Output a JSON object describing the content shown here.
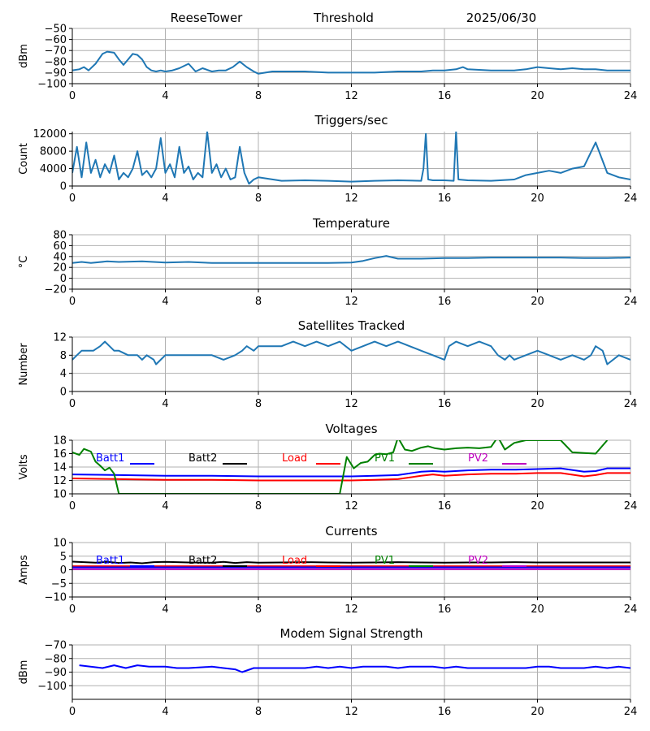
{
  "header": {
    "site": "ReeseTower",
    "mode": "Threshold",
    "date": "2025/06/30"
  },
  "colors": {
    "series_default": "#1f77b4",
    "batt1": "#0000ff",
    "batt2": "#000000",
    "load": "#ff0000",
    "pv1": "#008000",
    "pv2": "#bf00bf",
    "grid": "#b0b0b0"
  },
  "chart_data": [
    {
      "id": "signal",
      "type": "line",
      "title": "",
      "ylabel": "dBm",
      "xlim": [
        0,
        24
      ],
      "ylim": [
        -100,
        -50
      ],
      "xticks": [
        0,
        4,
        8,
        12,
        16,
        20,
        24
      ],
      "yticks": [
        -100,
        -90,
        -80,
        -70,
        -60,
        -50
      ],
      "ytick_labels": [
        "−100",
        "−90",
        "−80",
        "−70",
        "−60",
        "−50"
      ],
      "series": [
        {
          "color": "#1f77b4",
          "x": [
            0,
            0.3,
            0.5,
            0.7,
            1.0,
            1.3,
            1.5,
            1.8,
            2.0,
            2.2,
            2.4,
            2.6,
            2.8,
            3.0,
            3.2,
            3.4,
            3.6,
            3.8,
            4.0,
            4.3,
            4.6,
            5.0,
            5.3,
            5.6,
            6.0,
            6.3,
            6.6,
            6.9,
            7.2,
            7.5,
            7.8,
            8.0,
            8.3,
            8.6,
            9,
            10,
            11,
            12,
            13,
            14,
            15,
            15.5,
            16,
            16.5,
            16.8,
            17,
            18,
            19,
            19.5,
            20,
            20.5,
            21,
            21.5,
            22,
            22.5,
            23,
            24
          ],
          "y": [
            -88,
            -87,
            -85,
            -88,
            -82,
            -73,
            -71,
            -72,
            -78,
            -83,
            -78,
            -73,
            -74,
            -78,
            -85,
            -88,
            -89,
            -88,
            -89,
            -88,
            -86,
            -82,
            -89,
            -86,
            -89,
            -88,
            -88,
            -85,
            -80,
            -85,
            -89,
            -91,
            -90,
            -89,
            -89,
            -89,
            -90,
            -90,
            -90,
            -89,
            -89,
            -88,
            -88,
            -87,
            -85,
            -87,
            -88,
            -88,
            -87,
            -85,
            -86,
            -87,
            -86,
            -87,
            -87,
            -88,
            -88
          ]
        }
      ]
    },
    {
      "id": "triggers",
      "type": "line",
      "title": "Triggers/sec",
      "ylabel": "Count",
      "xlim": [
        0,
        24
      ],
      "ylim": [
        0,
        12500
      ],
      "xticks": [
        0,
        4,
        8,
        12,
        16,
        20,
        24
      ],
      "yticks": [
        0,
        4000,
        8000,
        12000
      ],
      "ytick_labels": [
        "0",
        "4000",
        "8000",
        "12000"
      ],
      "series": [
        {
          "color": "#1f77b4",
          "x": [
            0,
            0.2,
            0.4,
            0.6,
            0.8,
            1.0,
            1.2,
            1.4,
            1.6,
            1.8,
            2.0,
            2.2,
            2.4,
            2.6,
            2.8,
            3.0,
            3.2,
            3.4,
            3.6,
            3.8,
            4.0,
            4.2,
            4.4,
            4.6,
            4.8,
            5.0,
            5.2,
            5.4,
            5.6,
            5.8,
            6.0,
            6.2,
            6.4,
            6.6,
            6.8,
            7.0,
            7.2,
            7.4,
            7.6,
            7.8,
            8.0,
            9,
            10,
            11,
            12,
            13,
            14,
            15,
            15.1,
            15.2,
            15.3,
            15.5,
            16,
            16.4,
            16.5,
            16.6,
            17,
            18,
            19,
            19.5,
            20,
            20.5,
            21,
            21.5,
            22,
            22.5,
            23,
            23.5,
            24
          ],
          "y": [
            3000,
            9000,
            2000,
            10000,
            3000,
            6000,
            2000,
            5000,
            3000,
            7000,
            1500,
            3000,
            2000,
            4000,
            8000,
            2500,
            3500,
            2000,
            4000,
            11000,
            3000,
            5000,
            2000,
            9000,
            3000,
            4500,
            1500,
            3000,
            2000,
            12500,
            3000,
            5000,
            2000,
            4000,
            1500,
            2000,
            9000,
            3000,
            500,
            1500,
            2000,
            1200,
            1300,
            1200,
            1000,
            1200,
            1300,
            1200,
            4000,
            12000,
            1500,
            1300,
            1300,
            1200,
            12500,
            1500,
            1300,
            1200,
            1500,
            2500,
            3000,
            3500,
            3000,
            4000,
            4500,
            10000,
            3000,
            2000,
            1500
          ]
        }
      ]
    },
    {
      "id": "temperature",
      "type": "line",
      "title": "Temperature",
      "ylabel": "°C",
      "xlim": [
        0,
        24
      ],
      "ylim": [
        -20,
        80
      ],
      "xticks": [
        0,
        4,
        8,
        12,
        16,
        20,
        24
      ],
      "yticks": [
        -20,
        0,
        20,
        40,
        60,
        80
      ],
      "ytick_labels": [
        "−20",
        "0",
        "20",
        "40",
        "60",
        "80"
      ],
      "series": [
        {
          "color": "#1f77b4",
          "x": [
            0,
            0.4,
            0.8,
            1.5,
            2,
            3,
            4,
            5,
            6,
            7,
            8,
            9,
            10,
            11,
            12,
            12.5,
            13,
            13.5,
            14,
            15,
            16,
            17,
            18,
            19,
            20,
            21,
            22,
            23,
            24
          ],
          "y": [
            28,
            30,
            28,
            31,
            30,
            31,
            29,
            30,
            28,
            28,
            28,
            28,
            28,
            28,
            29,
            32,
            37,
            41,
            36,
            36,
            37,
            37,
            38,
            38,
            38,
            38,
            37,
            37,
            38
          ]
        }
      ]
    },
    {
      "id": "satellites",
      "type": "line",
      "title": "Satellites Tracked",
      "ylabel": "Number",
      "xlim": [
        0,
        24
      ],
      "ylim": [
        0,
        12
      ],
      "xticks": [
        0,
        4,
        8,
        12,
        16,
        20,
        24
      ],
      "yticks": [
        0,
        4,
        8,
        12
      ],
      "ytick_labels": [
        "0",
        "4",
        "8",
        "12"
      ],
      "series": [
        {
          "color": "#1f77b4",
          "x": [
            0,
            0.2,
            0.4,
            0.6,
            0.9,
            1.2,
            1.4,
            1.6,
            1.8,
            2.0,
            2.4,
            2.8,
            3.0,
            3.2,
            3.5,
            3.6,
            3.8,
            4.0,
            4.5,
            5.0,
            5.5,
            6.0,
            6.5,
            7.0,
            7.3,
            7.5,
            7.8,
            8.0,
            8.5,
            9.0,
            9.5,
            10,
            10.5,
            11,
            11.5,
            12,
            12.5,
            13,
            13.5,
            14,
            14.5,
            15,
            15.5,
            16,
            16.2,
            16.5,
            17,
            17.5,
            18,
            18.3,
            18.6,
            18.8,
            19,
            19.5,
            20,
            20.5,
            21,
            21.5,
            22,
            22.3,
            22.5,
            22.8,
            23,
            23.5,
            24
          ],
          "y": [
            7,
            8,
            9,
            9,
            9,
            10,
            11,
            10,
            9,
            9,
            8,
            8,
            7,
            8,
            7,
            6,
            7,
            8,
            8,
            8,
            8,
            8,
            7,
            8,
            9,
            10,
            9,
            10,
            10,
            10,
            11,
            10,
            11,
            10,
            11,
            9,
            10,
            11,
            10,
            11,
            10,
            9,
            8,
            7,
            10,
            11,
            10,
            11,
            10,
            8,
            7,
            8,
            7,
            8,
            9,
            8,
            7,
            8,
            7,
            8,
            10,
            9,
            6,
            8,
            7
          ]
        }
      ]
    },
    {
      "id": "voltages",
      "type": "line",
      "title": "Voltages",
      "ylabel": "Volts",
      "xlim": [
        0,
        24
      ],
      "ylim": [
        10,
        18
      ],
      "xticks": [
        0,
        4,
        8,
        12,
        16,
        20,
        24
      ],
      "yticks": [
        10,
        12,
        14,
        16,
        18
      ],
      "ytick_labels": [
        "10",
        "12",
        "14",
        "16",
        "18"
      ],
      "legend": [
        "Batt1",
        "Batt2",
        "Load",
        "PV1",
        "PV2"
      ],
      "series": [
        {
          "name": "Batt1",
          "color": "#0000ff",
          "x": [
            0,
            2,
            4,
            6,
            8,
            10,
            12,
            13,
            14,
            15,
            15.5,
            16,
            17,
            18,
            19,
            20,
            21,
            22,
            22.5,
            23,
            24
          ],
          "y": [
            12.9,
            12.8,
            12.7,
            12.7,
            12.6,
            12.6,
            12.6,
            12.7,
            12.8,
            13.3,
            13.4,
            13.3,
            13.5,
            13.6,
            13.6,
            13.7,
            13.8,
            13.3,
            13.4,
            13.8,
            13.8
          ]
        },
        {
          "name": "Load",
          "color": "#ff0000",
          "x": [
            0,
            2,
            4,
            6,
            8,
            10,
            12,
            13,
            14,
            15,
            15.5,
            16,
            17,
            18,
            19,
            20,
            21,
            22,
            22.5,
            23,
            24
          ],
          "y": [
            12.3,
            12.2,
            12.1,
            12.1,
            12.0,
            12.0,
            12.0,
            12.1,
            12.2,
            12.7,
            12.9,
            12.7,
            12.9,
            13.0,
            13.0,
            13.1,
            13.1,
            12.6,
            12.8,
            13.1,
            13.1
          ]
        },
        {
          "name": "PV1",
          "color": "#008000",
          "x": [
            0,
            0.3,
            0.5,
            0.8,
            1.0,
            1.2,
            1.4,
            1.6,
            1.8,
            2.0,
            11.5,
            11.8,
            12.1,
            12.4,
            12.7,
            13.0,
            13.2,
            13.5,
            13.8,
            14.0,
            14.3,
            14.6,
            15.0,
            15.3,
            15.6,
            16,
            16.5,
            17,
            17.5,
            18,
            18.3,
            18.6,
            19,
            19.5,
            20,
            21,
            21.5,
            22,
            22.5,
            23
          ],
          "y": [
            16.2,
            15.8,
            16.7,
            16.3,
            14.8,
            14.2,
            13.5,
            13.9,
            13.0,
            10.0,
            10.0,
            15.5,
            13.8,
            14.6,
            14.8,
            15.8,
            16.0,
            15.9,
            16.2,
            18.4,
            16.6,
            16.4,
            16.9,
            17.1,
            16.8,
            16.6,
            16.8,
            16.9,
            16.8,
            17.0,
            18.5,
            16.6,
            17.6,
            18.0,
            18.0,
            18.0,
            16.2,
            16.1,
            16.0,
            18.0
          ]
        }
      ]
    },
    {
      "id": "currents",
      "type": "line",
      "title": "Currents",
      "ylabel": "Amps",
      "xlim": [
        0,
        24
      ],
      "ylim": [
        -10,
        10
      ],
      "xticks": [
        0,
        4,
        8,
        12,
        16,
        20,
        24
      ],
      "yticks": [
        -10,
        -5,
        0,
        5,
        10
      ],
      "ytick_labels": [
        "−10",
        "−5",
        "0",
        "5",
        "10"
      ],
      "legend": [
        "Batt1",
        "Batt2",
        "Load",
        "PV1",
        "PV2"
      ],
      "series": [
        {
          "name": "Batt2",
          "color": "#000000",
          "x": [
            0,
            0.5,
            1,
            1.5,
            2,
            2.5,
            3,
            3.5,
            4,
            5,
            6,
            6.5,
            7,
            7.5,
            8,
            9,
            10,
            11,
            12,
            13,
            14,
            15,
            16,
            17,
            18,
            19,
            20,
            21,
            22,
            23,
            24
          ],
          "y": [
            3.0,
            2.8,
            2.6,
            2.9,
            2.5,
            2.7,
            2.4,
            2.8,
            2.9,
            2.7,
            2.6,
            2.9,
            2.5,
            2.8,
            2.6,
            2.7,
            2.8,
            2.7,
            2.6,
            2.7,
            2.8,
            2.7,
            2.6,
            2.7,
            2.7,
            2.8,
            2.7,
            2.7,
            2.7,
            2.7,
            2.7
          ]
        },
        {
          "name": "Load",
          "color": "#ff0000",
          "x": [
            0,
            2,
            4,
            6,
            8,
            10,
            12,
            14,
            16,
            18,
            20,
            22,
            24
          ],
          "y": [
            1.3,
            1.3,
            1.3,
            1.3,
            1.3,
            1.3,
            1.3,
            1.3,
            1.3,
            1.3,
            1.3,
            1.3,
            1.3
          ]
        },
        {
          "name": "Batt1",
          "color": "#0000ff",
          "x": [
            0,
            2,
            4,
            6,
            8,
            10,
            12,
            14,
            16,
            18,
            20,
            22,
            24
          ],
          "y": [
            0.9,
            0.9,
            0.9,
            0.9,
            0.9,
            0.9,
            0.9,
            0.9,
            0.9,
            0.9,
            0.9,
            0.9,
            0.9
          ]
        },
        {
          "name": "PV2",
          "color": "#bf00bf",
          "x": [
            0,
            2,
            4,
            6,
            8,
            10,
            12,
            14,
            16,
            18,
            20,
            22,
            24
          ],
          "y": [
            0.2,
            0.2,
            0.2,
            0.2,
            0.2,
            0.2,
            0.2,
            0.2,
            0.2,
            0.2,
            0.2,
            0.2,
            0.2
          ]
        }
      ]
    },
    {
      "id": "modem",
      "type": "line",
      "title": "Modem Signal Strength",
      "ylabel": "dBm",
      "xlim": [
        0,
        24
      ],
      "ylim": [
        -110,
        -70
      ],
      "xticks": [
        0,
        4,
        8,
        12,
        16,
        20,
        24
      ],
      "yticks": [
        -100,
        -90,
        -80,
        -70
      ],
      "ytick_labels": [
        "−100",
        "−90",
        "−80",
        "−70"
      ],
      "series": [
        {
          "color": "#0000ff",
          "x": [
            0.3,
            1.3,
            1.8,
            2.3,
            2.8,
            3.3,
            4,
            4.5,
            5,
            6,
            6.5,
            7,
            7.3,
            7.8,
            8.3,
            9,
            9.5,
            10,
            10.5,
            11,
            11.5,
            12,
            12.5,
            13,
            13.5,
            14,
            14.5,
            15,
            15.5,
            16,
            16.5,
            17,
            18,
            19,
            19.5,
            20,
            20.5,
            21,
            22,
            22.5,
            23,
            23.5,
            24
          ],
          "y": [
            -85,
            -87,
            -85,
            -87,
            -85,
            -86,
            -86,
            -87,
            -87,
            -86,
            -87,
            -88,
            -90,
            -87,
            -87,
            -87,
            -87,
            -87,
            -86,
            -87,
            -86,
            -87,
            -86,
            -86,
            -86,
            -87,
            -86,
            -86,
            -86,
            -87,
            -86,
            -87,
            -87,
            -87,
            -87,
            -86,
            -86,
            -87,
            -87,
            -86,
            -87,
            -86,
            -87
          ]
        }
      ]
    }
  ]
}
